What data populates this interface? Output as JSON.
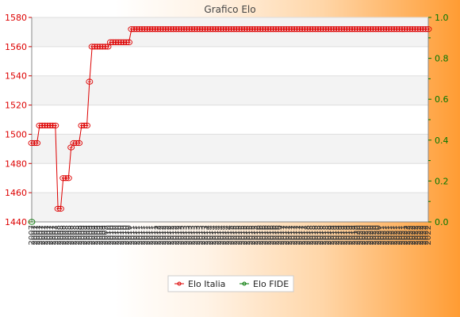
{
  "chart_data": {
    "type": "line",
    "title": "Grafico Elo",
    "y_left": {
      "min": 1440,
      "max": 1580,
      "ticks": [
        1440,
        1460,
        1480,
        1500,
        1520,
        1540,
        1560,
        1580
      ]
    },
    "y_right": {
      "min": 0.0,
      "max": 1.0,
      "ticks": [
        "0.0",
        "0.2",
        "0.4",
        "0.6",
        "0.8",
        "1.0"
      ]
    },
    "grid": true,
    "legend_placement": "bottom",
    "x_label_values": [
      "2007",
      "2008",
      "2009",
      "2010",
      "2011",
      "2012",
      "2013",
      "2014",
      "2015",
      "2016",
      "2017",
      "2018",
      "2019",
      "2020",
      "2021",
      "2022"
    ],
    "series": [
      {
        "name": "Elo Italia",
        "color": "#dd0000",
        "values": [
          1494,
          1494,
          1494,
          1506,
          1506,
          1506,
          1506,
          1506,
          1506,
          1506,
          1449,
          1449,
          1470,
          1470,
          1470,
          1491,
          1494,
          1494,
          1494,
          1506,
          1506,
          1506,
          1536,
          1560,
          1560,
          1560,
          1560,
          1560,
          1560,
          1560,
          1563,
          1563,
          1563,
          1563,
          1563,
          1563,
          1563,
          1563,
          1572,
          1572,
          1572,
          1572,
          1572,
          1572,
          1572,
          1572,
          1572,
          1572,
          1572,
          1572,
          1572,
          1572,
          1572,
          1572,
          1572,
          1572,
          1572,
          1572,
          1572,
          1572,
          1572,
          1572,
          1572,
          1572,
          1572,
          1572,
          1572,
          1572,
          1572,
          1572,
          1572,
          1572,
          1572,
          1572,
          1572,
          1572,
          1572,
          1572,
          1572,
          1572,
          1572,
          1572,
          1572,
          1572,
          1572,
          1572,
          1572,
          1572,
          1572,
          1572,
          1572,
          1572,
          1572,
          1572,
          1572,
          1572,
          1572,
          1572,
          1572,
          1572,
          1572,
          1572,
          1572,
          1572,
          1572,
          1572,
          1572,
          1572,
          1572,
          1572,
          1572,
          1572,
          1572,
          1572,
          1572,
          1572,
          1572,
          1572,
          1572,
          1572,
          1572,
          1572,
          1572,
          1572,
          1572,
          1572,
          1572,
          1572,
          1572,
          1572,
          1572,
          1572,
          1572,
          1572,
          1572,
          1572,
          1572,
          1572,
          1572,
          1572,
          1572,
          1572,
          1572,
          1572,
          1572,
          1572,
          1572,
          1572,
          1572,
          1572,
          1572,
          1572
        ]
      },
      {
        "name": "Elo FIDE",
        "color": "#007700",
        "values": [
          1440
        ]
      }
    ]
  }
}
